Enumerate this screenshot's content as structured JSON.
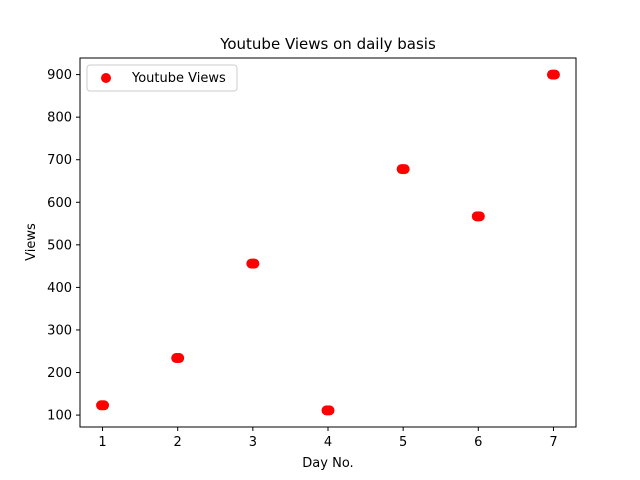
{
  "chart_data": {
    "type": "scatter",
    "title": "Youtube Views on daily basis",
    "xlabel": "Day No.",
    "ylabel": "Views",
    "x": [
      1,
      2,
      3,
      4,
      5,
      6,
      7
    ],
    "series": [
      {
        "name": "Youtube Views",
        "x": [
          1,
          2,
          3,
          4,
          5,
          6,
          7
        ],
        "y": [
          123,
          234,
          456,
          111,
          678,
          567,
          900
        ],
        "color": "#ff0000"
      }
    ],
    "xlim": [
      0.7,
      7.3
    ],
    "ylim": [
      72,
      939
    ],
    "xticks": [
      1,
      2,
      3,
      4,
      5,
      6,
      7
    ],
    "yticks": [
      100,
      200,
      300,
      400,
      500,
      600,
      700,
      800,
      900
    ],
    "grid": false,
    "legend": "upper-left"
  }
}
